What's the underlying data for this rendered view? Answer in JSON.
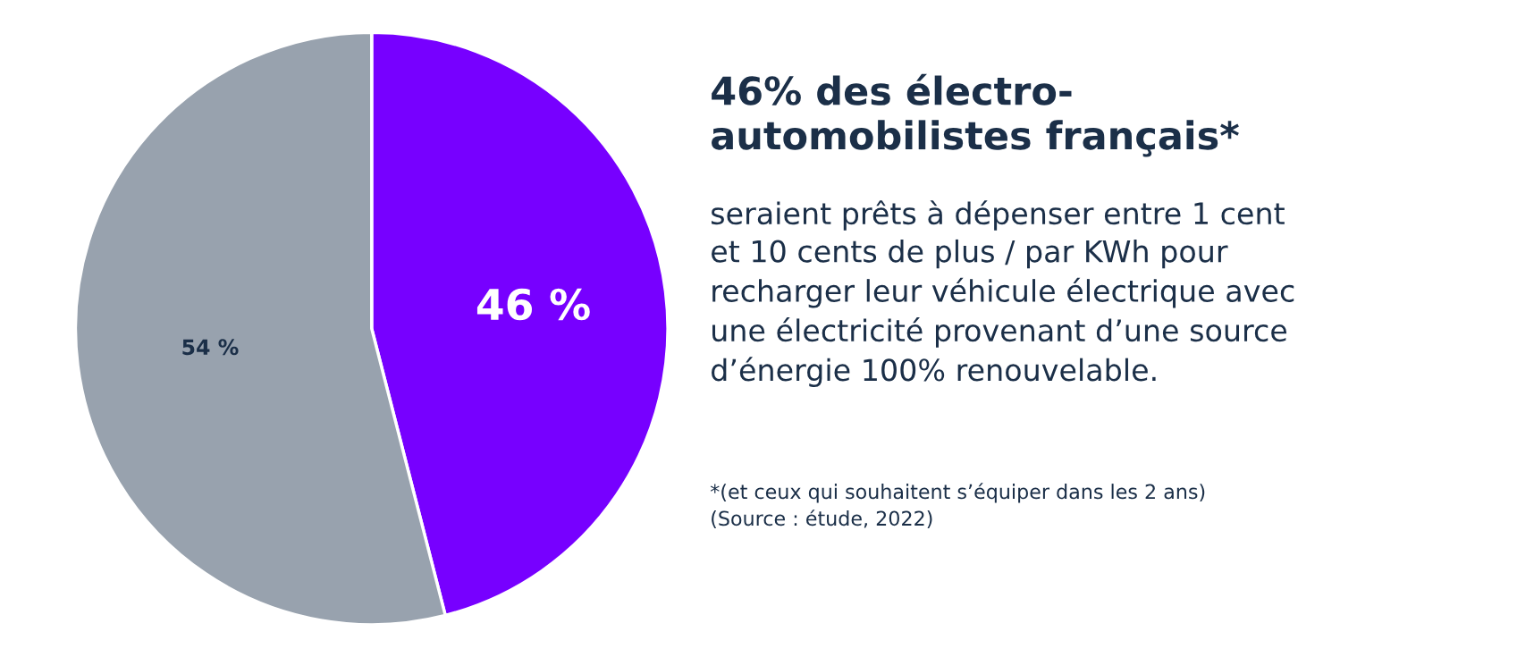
{
  "chart_data": {
    "type": "pie",
    "title": "46% des électro-\nautomobilistes français*",
    "subtitle": "seraient prêts à dépenser entre 1 cent\net 10 cents de plus / par KWh pour\nrecharger leur véhicule électrique avec\nune électricité provenant d’une source\nd’énergie 100% renouvelable.",
    "categories": [
      null,
      null
    ],
    "values": [
      46,
      54
    ],
    "colors": [
      "#7700ff",
      "#98a2ae"
    ],
    "value_labels": [
      "46 %",
      "54 %"
    ],
    "annotations": [
      "*(et ceux qui souhaitent s’équiper dans les 2 ans)\n(Source : étude, 2022)"
    ],
    "legend": false
  }
}
